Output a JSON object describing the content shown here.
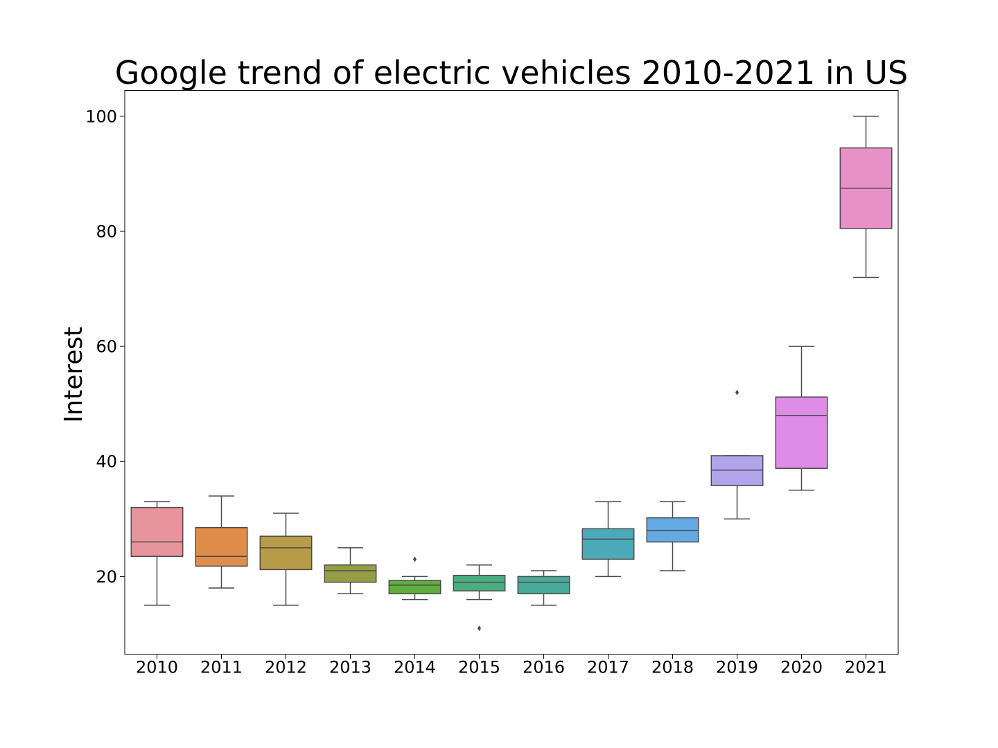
{
  "chart_data": {
    "type": "box",
    "title": "Google trend of electric vehicles 2010-2021 in US",
    "xlabel": "",
    "ylabel": "Interest",
    "ylim": [
      6.5,
      104.5
    ],
    "yticks": [
      20,
      40,
      60,
      80,
      100
    ],
    "grid": false,
    "legend": "none",
    "categories": [
      "2010",
      "2011",
      "2012",
      "2013",
      "2014",
      "2015",
      "2016",
      "2017",
      "2018",
      "2019",
      "2020",
      "2021"
    ],
    "boxes": [
      {
        "category": "2010",
        "whisker_low": 15,
        "q1": 23.5,
        "median": 26,
        "q3": 32,
        "whisker_high": 33,
        "outliers": [],
        "color": "#e8949d"
      },
      {
        "category": "2011",
        "whisker_low": 18,
        "q1": 21.8,
        "median": 23.5,
        "q3": 28.5,
        "whisker_high": 34,
        "outliers": [],
        "color": "#e08d4c"
      },
      {
        "category": "2012",
        "whisker_low": 15,
        "q1": 21.2,
        "median": 25,
        "q3": 27,
        "whisker_high": 31,
        "outliers": [],
        "color": "#b89b48"
      },
      {
        "category": "2013",
        "whisker_low": 17,
        "q1": 19,
        "median": 21,
        "q3": 22,
        "whisker_high": 25,
        "outliers": [],
        "color": "#959e45"
      },
      {
        "category": "2014",
        "whisker_low": 16,
        "q1": 17,
        "median": 18.5,
        "q3": 19.3,
        "whisker_high": 20,
        "outliers": [
          23
        ],
        "color": "#5fae3e"
      },
      {
        "category": "2015",
        "whisker_low": 16,
        "q1": 17.5,
        "median": 19,
        "q3": 20.2,
        "whisker_high": 22,
        "outliers": [
          11
        ],
        "color": "#49ad80"
      },
      {
        "category": "2016",
        "whisker_low": 15,
        "q1": 17,
        "median": 19,
        "q3": 20,
        "whisker_high": 21,
        "outliers": [],
        "color": "#4aaa9a"
      },
      {
        "category": "2017",
        "whisker_low": 20,
        "q1": 23,
        "median": 26.5,
        "q3": 28.3,
        "whisker_high": 33,
        "outliers": [],
        "color": "#4caab8"
      },
      {
        "category": "2018",
        "whisker_low": 21,
        "q1": 26,
        "median": 28,
        "q3": 30.2,
        "whisker_high": 33,
        "outliers": [],
        "color": "#64a9e4"
      },
      {
        "category": "2019",
        "whisker_low": 30,
        "q1": 35.8,
        "median": 38.5,
        "q3": 41,
        "whisker_high": 41,
        "outliers": [
          52
        ],
        "color": "#b1a4eb"
      },
      {
        "category": "2020",
        "whisker_low": 35,
        "q1": 38.8,
        "median": 48,
        "q3": 51.2,
        "whisker_high": 60,
        "outliers": [],
        "color": "#de8ce8"
      },
      {
        "category": "2021",
        "whisker_low": 72,
        "q1": 80.5,
        "median": 87.5,
        "q3": 94.5,
        "whisker_high": 100,
        "outliers": [],
        "color": "#e891c8"
      }
    ]
  }
}
